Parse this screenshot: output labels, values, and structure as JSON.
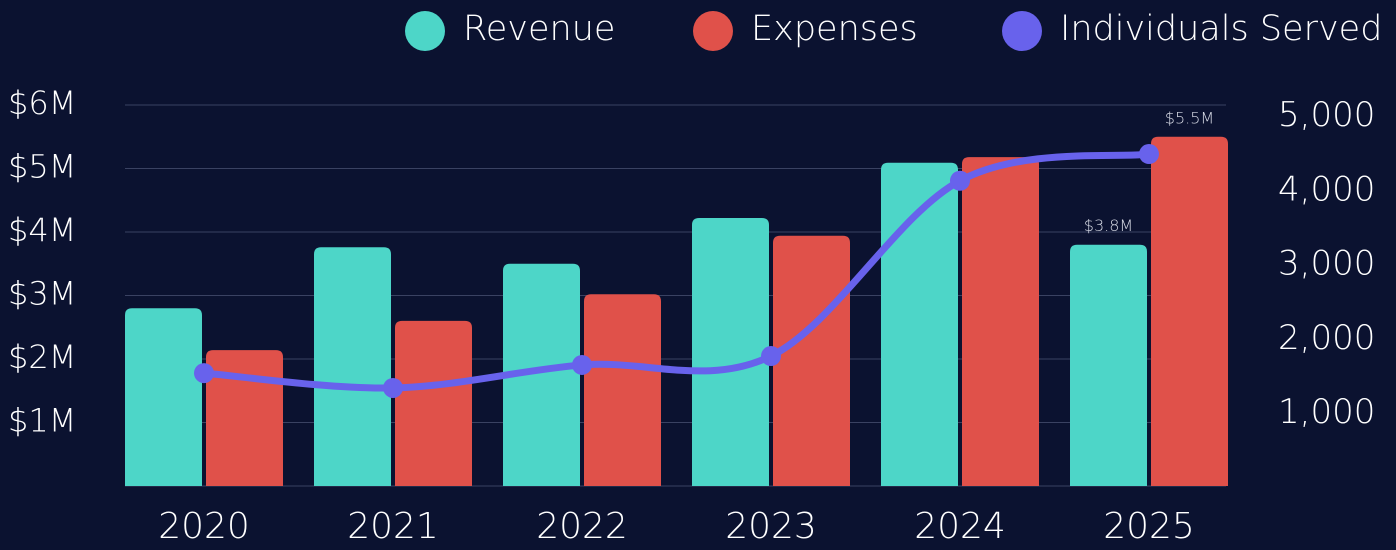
{
  "chart_data": {
    "type": "bar",
    "categories": [
      "2020",
      "2021",
      "2022",
      "2023",
      "2024",
      "2025"
    ],
    "series": [
      {
        "name": "Revenue",
        "color": "#4dd6c8",
        "values": [
          2.8,
          3.76,
          3.5,
          4.22,
          5.09,
          3.8
        ],
        "value_labels": [
          null,
          null,
          null,
          null,
          null,
          "$3.8M"
        ]
      },
      {
        "name": "Expenses",
        "color": "#e0514a",
        "values": [
          2.14,
          2.6,
          3.02,
          3.94,
          5.18,
          5.5
        ],
        "value_labels": [
          null,
          null,
          null,
          null,
          null,
          "$5.5M"
        ]
      },
      {
        "name": "Individuals Served",
        "color": "#6862ec",
        "type": "line",
        "axis": "y2",
        "values": [
          1520,
          1320,
          1630,
          1750,
          4110,
          4470
        ]
      }
    ],
    "ylim": [
      0,
      6
    ],
    "yticks": [
      {
        "value": 1,
        "label": "$1M"
      },
      {
        "value": 2,
        "label": "$2M"
      },
      {
        "value": 3,
        "label": "$3M"
      },
      {
        "value": 4,
        "label": "$4M"
      },
      {
        "value": 5,
        "label": "$5M"
      },
      {
        "value": 6,
        "label": "$6M"
      }
    ],
    "y2lim": [
      0,
      5130
    ],
    "y2ticks": [
      {
        "value": 1000,
        "label": "1,000"
      },
      {
        "value": 2000,
        "label": "2,000"
      },
      {
        "value": 3000,
        "label": "3,000"
      },
      {
        "value": 4000,
        "label": "4,000"
      },
      {
        "value": 5000,
        "label": "5,000"
      }
    ],
    "grid": true,
    "legend": "top-right"
  }
}
